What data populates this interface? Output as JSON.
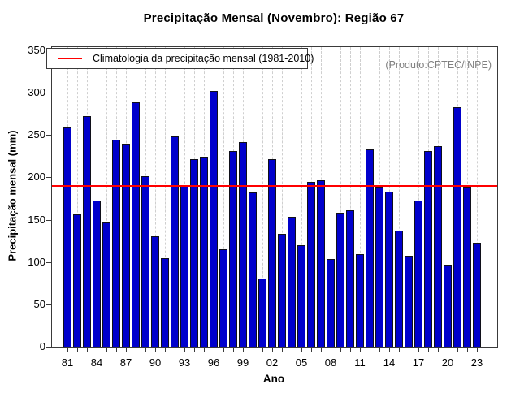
{
  "title": "Precipitação Mensal (Novembro): Região 67",
  "annotation": "(Produto:CPTEC/INPE)",
  "legend": {
    "label": "Climatologia da precipitação mensal (1981-2010)",
    "line_color": "#ff0000"
  },
  "colors": {
    "bar_fill": "#0000CC",
    "bar_border": "#10101a",
    "climatology_line": "#ff0000",
    "grid": "#cfcfcf",
    "annotation_text": "#808080"
  },
  "chart_data": {
    "type": "bar",
    "title": "Precipitação Mensal (Novembro): Região 67",
    "xlabel": "Ano",
    "ylabel": "Precipitação mensal (mm)",
    "ylim": [
      0,
      350
    ],
    "yticks": [
      0,
      50,
      100,
      150,
      200,
      250,
      300,
      350
    ],
    "grid": "dashed vertical line at each bar",
    "legend_position": "top-left",
    "categories": [
      1981,
      1982,
      1983,
      1984,
      1985,
      1986,
      1987,
      1988,
      1989,
      1990,
      1991,
      1992,
      1993,
      1994,
      1995,
      1996,
      1997,
      1998,
      1999,
      2000,
      2001,
      2002,
      2003,
      2004,
      2005,
      2006,
      2007,
      2008,
      2009,
      2010,
      2011,
      2012,
      2013,
      2014,
      2015,
      2016,
      2017,
      2018,
      2019,
      2020,
      2021,
      2022,
      2023
    ],
    "values": [
      259,
      156,
      272,
      173,
      147,
      245,
      240,
      289,
      201,
      130,
      105,
      248,
      190,
      222,
      224,
      302,
      115,
      231,
      242,
      182,
      81,
      222,
      133,
      153,
      120,
      195,
      197,
      104,
      158,
      161,
      109,
      233,
      189,
      183,
      137,
      107,
      173,
      231,
      237,
      97,
      283,
      189,
      123
    ],
    "climatology_mean": 190,
    "x_labeled_every": 3,
    "x_tick_labels": [
      "81",
      "84",
      "87",
      "90",
      "93",
      "96",
      "99",
      "02",
      "05",
      "08",
      "11",
      "14",
      "17",
      "20",
      "23"
    ]
  }
}
